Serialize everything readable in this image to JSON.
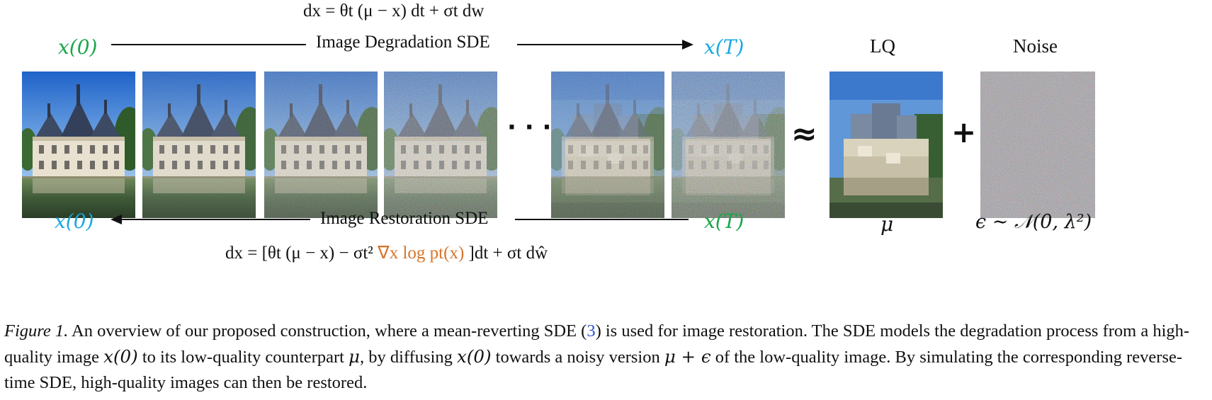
{
  "top_equation": "dx = θt (μ − x) dt + σt dw",
  "forward": {
    "start_label": "x(0)",
    "process_label": "Image Degradation SDE",
    "end_label": "x(T)"
  },
  "reverse": {
    "start_label": "x(0)",
    "process_label": "Image Restoration SDE",
    "end_label": "x(T)",
    "equation_parts": {
      "a": "dx = [θt (μ − x) − σt² ",
      "score": "∇x log pt(x)",
      "b": " ]dt + σt dŵ"
    }
  },
  "ellipsis": "· · ·",
  "approx_symbol": "≈",
  "plus_symbol": "+",
  "lq": {
    "title": "LQ",
    "symbol": "μ"
  },
  "noise": {
    "title": "Noise",
    "symbol": "ϵ ∼ 𝒩(0, λ²)"
  },
  "images": [
    {
      "name": "clean-castle",
      "noise_level": 0.0
    },
    {
      "name": "noise-step-1",
      "noise_level": 0.15
    },
    {
      "name": "noise-step-2",
      "noise_level": 0.35
    },
    {
      "name": "noise-step-3",
      "noise_level": 0.5
    },
    {
      "name": "noise-step-4",
      "noise_level": 0.75
    },
    {
      "name": "noise-step-T",
      "noise_level": 0.9
    }
  ],
  "caption": {
    "figure_label": "Figure 1.",
    "text1": " An overview of our proposed construction, where a mean-reverting SDE (",
    "cite": "3",
    "text2": ") is used for image restoration. The SDE models the degradation process from a high-quality image ",
    "x0a": "x(0)",
    "text3": " to its low-quality counterpart ",
    "mu1": "μ",
    "text4": ", by diffusing ",
    "x0b": "x(0)",
    "text5": " towards a noisy version ",
    "mueps": "μ + ϵ",
    "text6": " of the low-quality image. By simulating the corresponding reverse-time SDE, high-quality images can then be restored."
  },
  "colors": {
    "green": "#1aa64a",
    "cyan": "#19a9e0",
    "orange": "#d9742b",
    "cite": "#2b50c8"
  }
}
